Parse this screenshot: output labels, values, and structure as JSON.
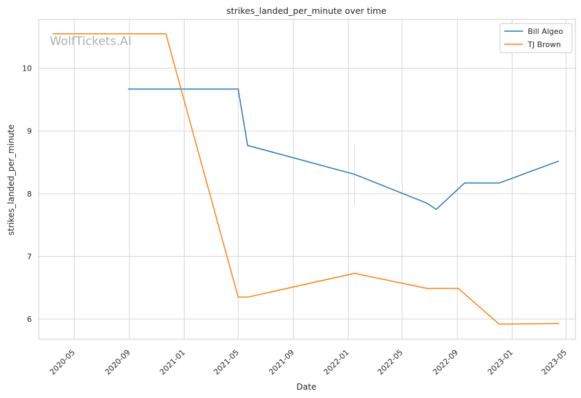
{
  "chart_data": {
    "type": "line",
    "title": "strikes_landed_per_minute over time",
    "xlabel": "Date",
    "ylabel": "strikes_landed_per_minute",
    "watermark": "WolfTickets.AI",
    "x_ticks": [
      "2020-05",
      "2020-09",
      "2021-01",
      "2021-05",
      "2021-09",
      "2022-01",
      "2022-05",
      "2022-09",
      "2023-01",
      "2023-05"
    ],
    "y_ticks": [
      6,
      7,
      8,
      9,
      10
    ],
    "ylim": [
      5.68,
      10.78
    ],
    "xlim": [
      "2020-02-12",
      "2023-05-22"
    ],
    "grid": true,
    "legend_position": "top-right",
    "series": [
      {
        "name": "Bill Algeo",
        "color": "#1f77b4",
        "points": [
          {
            "x": "2020-08-29",
            "y": 9.67
          },
          {
            "x": "2021-05-01",
            "y": 9.67
          },
          {
            "x": "2021-05-22",
            "y": 8.77
          },
          {
            "x": "2022-01-15",
            "y": 8.31
          },
          {
            "x": "2022-06-25",
            "y": 7.85
          },
          {
            "x": "2022-07-16",
            "y": 7.75
          },
          {
            "x": "2022-09-17",
            "y": 8.17
          },
          {
            "x": "2022-12-03",
            "y": 8.17
          },
          {
            "x": "2023-04-15",
            "y": 8.52
          }
        ]
      },
      {
        "name": "TJ Brown",
        "color": "#ff7f0e",
        "points": [
          {
            "x": "2020-03-14",
            "y": 10.55
          },
          {
            "x": "2020-11-21",
            "y": 10.55
          },
          {
            "x": "2021-05-01",
            "y": 6.35
          },
          {
            "x": "2021-05-22",
            "y": 6.35
          },
          {
            "x": "2022-01-15",
            "y": 6.73
          },
          {
            "x": "2022-06-25",
            "y": 6.49
          },
          {
            "x": "2022-09-03",
            "y": 6.49
          },
          {
            "x": "2022-12-03",
            "y": 5.92
          },
          {
            "x": "2023-04-15",
            "y": 5.93
          }
        ]
      }
    ]
  }
}
